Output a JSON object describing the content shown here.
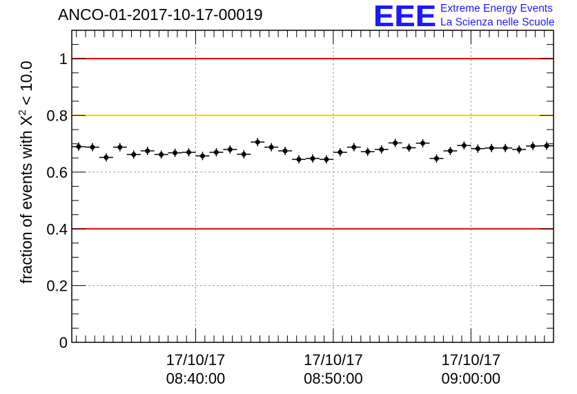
{
  "title": "ANCO-01-2017-10-17-00019",
  "logo": {
    "mark": "EEE",
    "line1": "Extreme Energy Events",
    "line2": "La Scienza nelle Scuole"
  },
  "colors": {
    "ref_red": "#e00000",
    "ref_yellow": "#ffc400",
    "logo_blue": "#1a1aff",
    "points": "#000000"
  },
  "y_axis_label": {
    "before": "fraction of events with X",
    "sup": "2",
    "after": " < 10.0"
  },
  "chart_data": {
    "type": "scatter",
    "ylim": [
      0,
      1.1
    ],
    "xlim_minutes": [
      0,
      105
    ],
    "grid": true,
    "yticks": [
      {
        "value": 0,
        "label": "0"
      },
      {
        "value": 0.2,
        "label": "0.2"
      },
      {
        "value": 0.4,
        "label": "0.4"
      },
      {
        "value": 0.6,
        "label": "0.6"
      },
      {
        "value": 0.8,
        "label": "0.8"
      },
      {
        "value": 1.0,
        "label": "1"
      }
    ],
    "xticks": [
      {
        "minute": 27,
        "date": "17/10/17",
        "time": "08:40:00"
      },
      {
        "minute": 57,
        "date": "17/10/17",
        "time": "08:50:00"
      },
      {
        "minute": 87,
        "date": "17/10/17",
        "time": "09:00:00"
      }
    ],
    "reference_lines": [
      {
        "y": 1.0,
        "color": "#e00000"
      },
      {
        "y": 0.8,
        "color": "#ffc400"
      },
      {
        "y": 0.4,
        "color": "#e00000"
      }
    ],
    "bin_width_minutes": 3,
    "series": [
      {
        "x_minutes": [
          1.5,
          4.5,
          7.5,
          10.5,
          13.5,
          16.5,
          19.5,
          22.5,
          25.5,
          28.5,
          31.5,
          34.5,
          37.5,
          40.5,
          43.5,
          46.5,
          49.5,
          52.5,
          55.5,
          58.5,
          61.5,
          64.5,
          67.5,
          70.5,
          73.5,
          76.5,
          79.5,
          82.5,
          85.5,
          88.5,
          91.5,
          94.5,
          97.5,
          100.5,
          103.5
        ],
        "values": [
          0.69,
          0.688,
          0.652,
          0.688,
          0.662,
          0.675,
          0.662,
          0.668,
          0.67,
          0.657,
          0.67,
          0.68,
          0.663,
          0.706,
          0.688,
          0.675,
          0.645,
          0.648,
          0.645,
          0.67,
          0.688,
          0.672,
          0.68,
          0.703,
          0.686,
          0.702,
          0.648,
          0.675,
          0.694,
          0.683,
          0.685,
          0.685,
          0.68,
          0.692,
          0.693
        ]
      }
    ]
  }
}
